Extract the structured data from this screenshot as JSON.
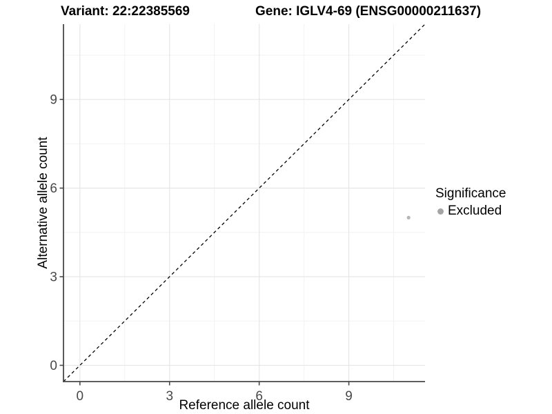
{
  "header": {
    "title_left": "Variant: 22:22385569",
    "title_right": "Gene: IGLV4-69 (ENSG00000211637)"
  },
  "chart_data": {
    "type": "scatter",
    "xlabel": "Reference allele count",
    "ylabel": "Alternative allele count",
    "xlim": [
      -0.55,
      11.55
    ],
    "ylim": [
      -0.55,
      11.55
    ],
    "x_major_ticks": [
      0,
      3,
      6,
      9
    ],
    "y_major_ticks": [
      0,
      3,
      6,
      9
    ],
    "x_minor_gridlines": [
      1.5,
      4.5,
      7.5,
      10.5
    ],
    "y_minor_gridlines": [
      1.5,
      4.5,
      7.5,
      10.5
    ],
    "grid": true,
    "identity_line": {
      "slope": 1,
      "intercept": 0,
      "style": "dashed",
      "color": "#000000"
    },
    "series": [
      {
        "name": "Excluded",
        "color": "#b5b5b5",
        "points": [
          {
            "x": 11,
            "y": 5
          }
        ]
      }
    ],
    "legend": {
      "title": "Significance",
      "position": "right",
      "entries": [
        {
          "label": "Excluded",
          "color": "#a5a5a5"
        }
      ]
    },
    "colors": {
      "background": "#ffffff",
      "grid_major": "#e6e6e6",
      "grid_minor": "#f2f2f2",
      "axis_line": "#474747",
      "tick_label": "#474747",
      "axis_title": "#000000"
    }
  }
}
